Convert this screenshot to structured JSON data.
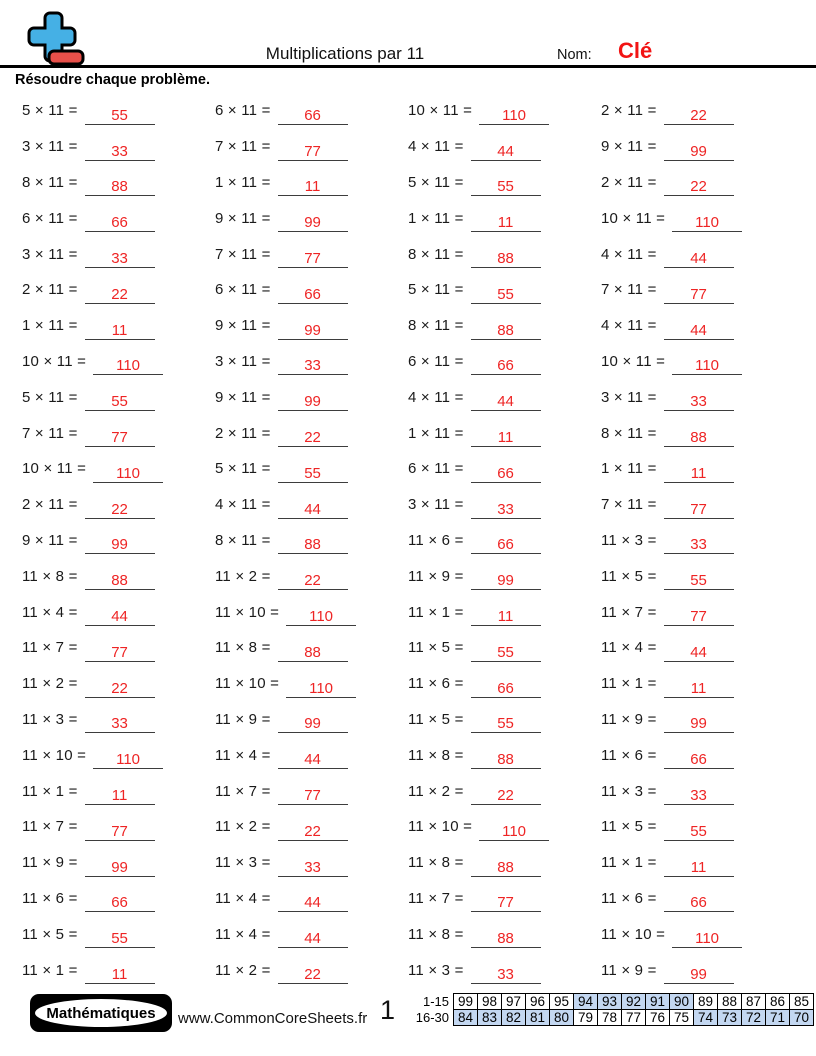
{
  "header": {
    "title": "Multiplications par 11",
    "name_label": "Nom:",
    "name_value": "Clé",
    "instruction": "Résoudre chaque problème."
  },
  "colors": {
    "answer_red": "#ee2424",
    "name_red": "#f21414",
    "logo_plus_blue": "#45b0e5",
    "logo_minus_red": "#e8504a",
    "score_highlight_blue": "#c3d7f1"
  },
  "problems": {
    "columns": [
      {
        "items": [
          {
            "expr": "5 × 11 =",
            "ans": "55"
          },
          {
            "expr": "3 × 11 =",
            "ans": "33"
          },
          {
            "expr": "8 × 11 =",
            "ans": "88"
          },
          {
            "expr": "6 × 11 =",
            "ans": "66"
          },
          {
            "expr": "3 × 11 =",
            "ans": "33"
          },
          {
            "expr": "2 × 11 =",
            "ans": "22"
          },
          {
            "expr": "1 × 11 =",
            "ans": "11"
          },
          {
            "expr": "10 × 11 =",
            "ans": "110"
          },
          {
            "expr": "5 × 11 =",
            "ans": "55"
          },
          {
            "expr": "7 × 11 =",
            "ans": "77"
          },
          {
            "expr": "10 × 11 =",
            "ans": "110"
          },
          {
            "expr": "2 × 11 =",
            "ans": "22"
          },
          {
            "expr": "9 × 11 =",
            "ans": "99"
          },
          {
            "expr": "11 × 8 =",
            "ans": "88"
          },
          {
            "expr": "11 × 4 =",
            "ans": "44"
          },
          {
            "expr": "11 × 7 =",
            "ans": "77"
          },
          {
            "expr": "11 × 2 =",
            "ans": "22"
          },
          {
            "expr": "11 × 3 =",
            "ans": "33"
          },
          {
            "expr": "11 × 10 =",
            "ans": "110"
          },
          {
            "expr": "11 × 1 =",
            "ans": "11"
          },
          {
            "expr": "11 × 7 =",
            "ans": "77"
          },
          {
            "expr": "11 × 9 =",
            "ans": "99"
          },
          {
            "expr": "11 × 6 =",
            "ans": "66"
          },
          {
            "expr": "11 × 5 =",
            "ans": "55"
          },
          {
            "expr": "11 × 1 =",
            "ans": "11"
          }
        ]
      },
      {
        "items": [
          {
            "expr": "6 × 11 =",
            "ans": "66"
          },
          {
            "expr": "7 × 11 =",
            "ans": "77"
          },
          {
            "expr": "1 × 11 =",
            "ans": "11"
          },
          {
            "expr": "9 × 11 =",
            "ans": "99"
          },
          {
            "expr": "7 × 11 =",
            "ans": "77"
          },
          {
            "expr": "6 × 11 =",
            "ans": "66"
          },
          {
            "expr": "9 × 11 =",
            "ans": "99"
          },
          {
            "expr": "3 × 11 =",
            "ans": "33"
          },
          {
            "expr": "9 × 11 =",
            "ans": "99"
          },
          {
            "expr": "2 × 11 =",
            "ans": "22"
          },
          {
            "expr": "5 × 11 =",
            "ans": "55"
          },
          {
            "expr": "4 × 11 =",
            "ans": "44"
          },
          {
            "expr": "8 × 11 =",
            "ans": "88"
          },
          {
            "expr": "11 × 2 =",
            "ans": "22"
          },
          {
            "expr": "11 × 10 =",
            "ans": "110"
          },
          {
            "expr": "11 × 8 =",
            "ans": "88"
          },
          {
            "expr": "11 × 10 =",
            "ans": "110"
          },
          {
            "expr": "11 × 9 =",
            "ans": "99"
          },
          {
            "expr": "11 × 4 =",
            "ans": "44"
          },
          {
            "expr": "11 × 7 =",
            "ans": "77"
          },
          {
            "expr": "11 × 2 =",
            "ans": "22"
          },
          {
            "expr": "11 × 3 =",
            "ans": "33"
          },
          {
            "expr": "11 × 4 =",
            "ans": "44"
          },
          {
            "expr": "11 × 4 =",
            "ans": "44"
          },
          {
            "expr": "11 × 2 =",
            "ans": "22"
          }
        ]
      },
      {
        "items": [
          {
            "expr": "10 × 11 =",
            "ans": "110"
          },
          {
            "expr": "4 × 11 =",
            "ans": "44"
          },
          {
            "expr": "5 × 11 =",
            "ans": "55"
          },
          {
            "expr": "1 × 11 =",
            "ans": "11"
          },
          {
            "expr": "8 × 11 =",
            "ans": "88"
          },
          {
            "expr": "5 × 11 =",
            "ans": "55"
          },
          {
            "expr": "8 × 11 =",
            "ans": "88"
          },
          {
            "expr": "6 × 11 =",
            "ans": "66"
          },
          {
            "expr": "4 × 11 =",
            "ans": "44"
          },
          {
            "expr": "1 × 11 =",
            "ans": "11"
          },
          {
            "expr": "6 × 11 =",
            "ans": "66"
          },
          {
            "expr": "3 × 11 =",
            "ans": "33"
          },
          {
            "expr": "11 × 6 =",
            "ans": "66"
          },
          {
            "expr": "11 × 9 =",
            "ans": "99"
          },
          {
            "expr": "11 × 1 =",
            "ans": "11"
          },
          {
            "expr": "11 × 5 =",
            "ans": "55"
          },
          {
            "expr": "11 × 6 =",
            "ans": "66"
          },
          {
            "expr": "11 × 5 =",
            "ans": "55"
          },
          {
            "expr": "11 × 8 =",
            "ans": "88"
          },
          {
            "expr": "11 × 2 =",
            "ans": "22"
          },
          {
            "expr": "11 × 10 =",
            "ans": "110"
          },
          {
            "expr": "11 × 8 =",
            "ans": "88"
          },
          {
            "expr": "11 × 7 =",
            "ans": "77"
          },
          {
            "expr": "11 × 8 =",
            "ans": "88"
          },
          {
            "expr": "11 × 3 =",
            "ans": "33"
          }
        ]
      },
      {
        "items": [
          {
            "expr": "2 × 11 =",
            "ans": "22"
          },
          {
            "expr": "9 × 11 =",
            "ans": "99"
          },
          {
            "expr": "2 × 11 =",
            "ans": "22"
          },
          {
            "expr": "10 × 11 =",
            "ans": "110"
          },
          {
            "expr": "4 × 11 =",
            "ans": "44"
          },
          {
            "expr": "7 × 11 =",
            "ans": "77"
          },
          {
            "expr": "4 × 11 =",
            "ans": "44"
          },
          {
            "expr": "10 × 11 =",
            "ans": "110"
          },
          {
            "expr": "3 × 11 =",
            "ans": "33"
          },
          {
            "expr": "8 × 11 =",
            "ans": "88"
          },
          {
            "expr": "1 × 11 =",
            "ans": "11"
          },
          {
            "expr": "7 × 11 =",
            "ans": "77"
          },
          {
            "expr": "11 × 3 =",
            "ans": "33"
          },
          {
            "expr": "11 × 5 =",
            "ans": "55"
          },
          {
            "expr": "11 × 7 =",
            "ans": "77"
          },
          {
            "expr": "11 × 4 =",
            "ans": "44"
          },
          {
            "expr": "11 × 1 =",
            "ans": "11"
          },
          {
            "expr": "11 × 9 =",
            "ans": "99"
          },
          {
            "expr": "11 × 6 =",
            "ans": "66"
          },
          {
            "expr": "11 × 3 =",
            "ans": "33"
          },
          {
            "expr": "11 × 5 =",
            "ans": "55"
          },
          {
            "expr": "11 × 1 =",
            "ans": "11"
          },
          {
            "expr": "11 × 6 =",
            "ans": "66"
          },
          {
            "expr": "11 × 10 =",
            "ans": "110"
          },
          {
            "expr": "11 × 9 =",
            "ans": "99"
          }
        ]
      }
    ]
  },
  "footer": {
    "brand": "Mathématiques",
    "website": "www.CommonCoreSheets.fr",
    "page_number": "1",
    "score_table": {
      "rows": [
        {
          "label": "1-15",
          "cells": [
            "99",
            "98",
            "97",
            "96",
            "95",
            "94",
            "93",
            "92",
            "91",
            "90",
            "89",
            "88",
            "87",
            "86",
            "85"
          ],
          "highlighted": [
            false,
            false,
            false,
            false,
            false,
            true,
            true,
            true,
            true,
            true,
            false,
            false,
            false,
            false,
            false
          ]
        },
        {
          "label": "16-30",
          "cells": [
            "84",
            "83",
            "82",
            "81",
            "80",
            "79",
            "78",
            "77",
            "76",
            "75",
            "74",
            "73",
            "72",
            "71",
            "70"
          ],
          "highlighted": [
            true,
            true,
            true,
            true,
            true,
            false,
            false,
            false,
            false,
            false,
            true,
            true,
            true,
            true,
            true
          ]
        }
      ]
    }
  }
}
